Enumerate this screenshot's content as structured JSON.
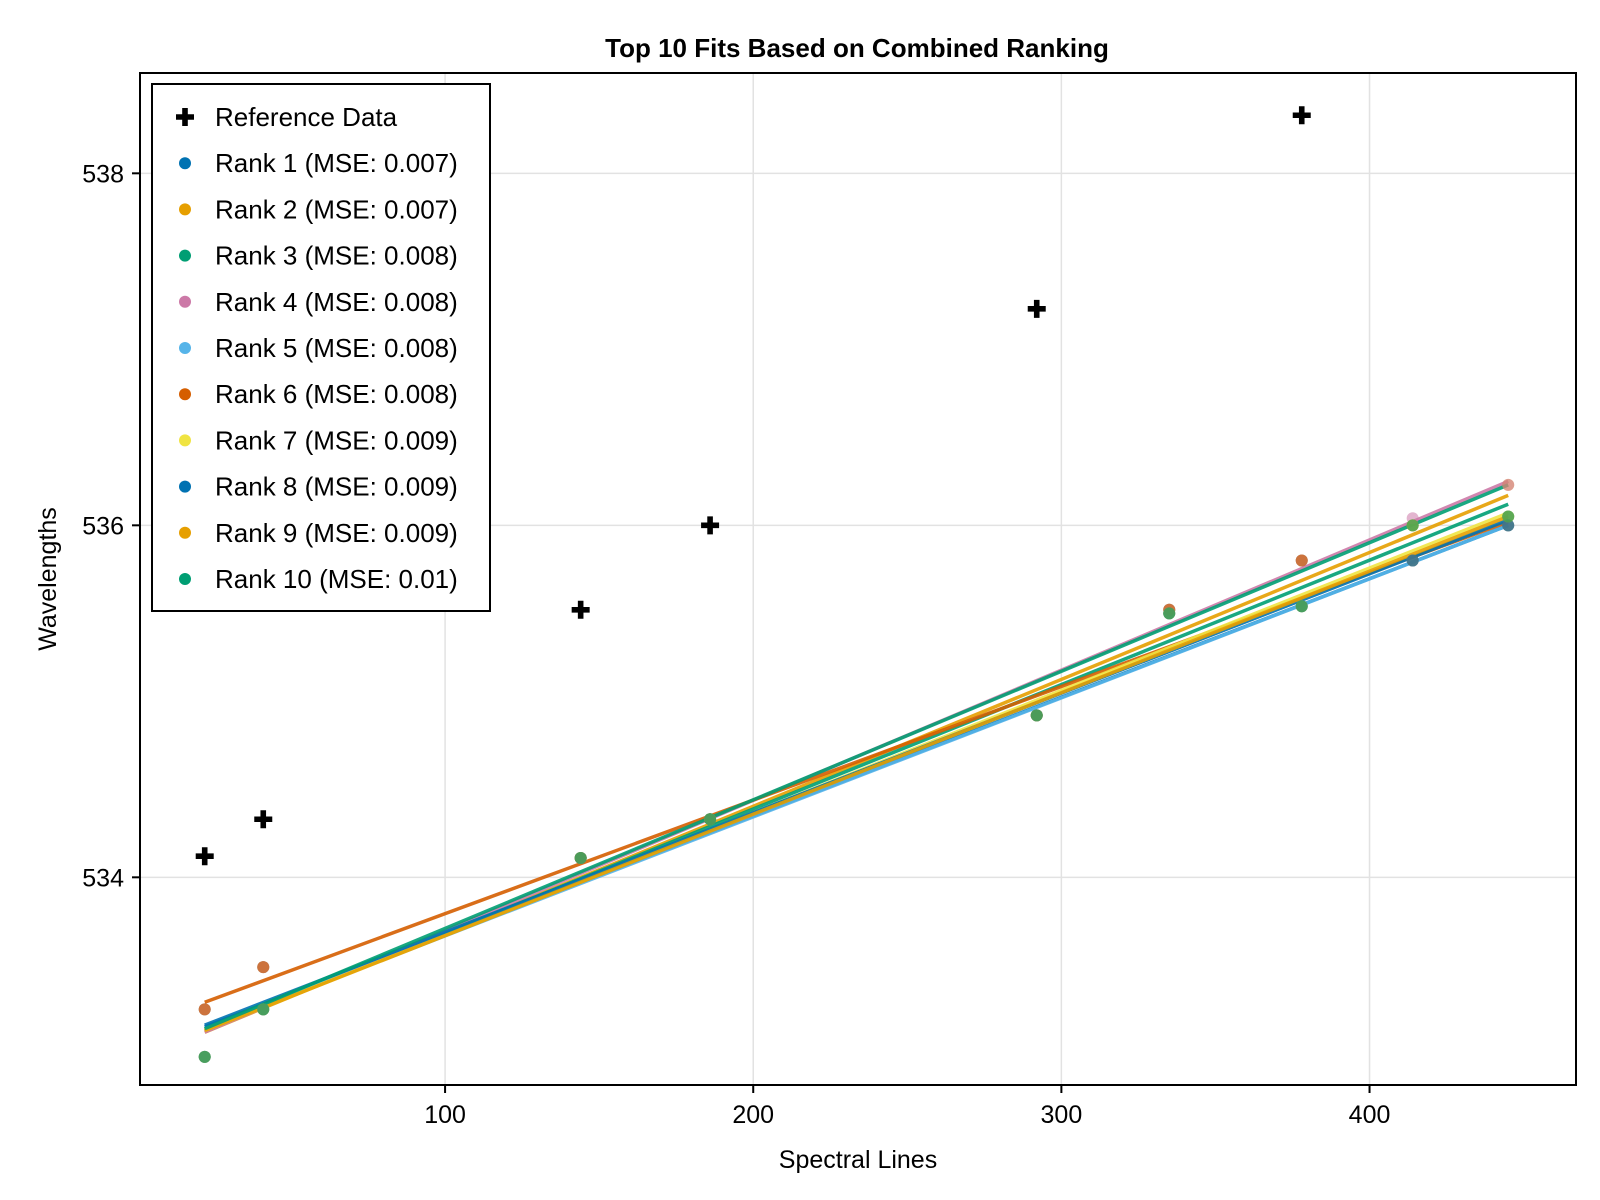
{
  "chart_data": {
    "type": "scatter",
    "title": "Top 10 Fits Based on Combined Ranking",
    "xlabel": "Spectral Lines",
    "ylabel": "Wavelengths",
    "xlim": [
      1,
      467
    ],
    "ylim": [
      532.82,
      538.57
    ],
    "xticks": [
      100,
      200,
      300,
      400
    ],
    "yticks": [
      534,
      536,
      538
    ],
    "grid": true,
    "legend_position": "top-left",
    "reference": {
      "name": "Reference Data",
      "color": "#000000",
      "marker": "cross",
      "x": [
        22,
        41,
        144,
        186,
        292,
        378
      ],
      "y": [
        534.12,
        534.33,
        535.52,
        536.0,
        537.23,
        538.33
      ]
    },
    "series": [
      {
        "name": "Rank 1 (MSE: 0.007)",
        "color": "#0072b2",
        "x": [
          22,
          41,
          144,
          186,
          292,
          335,
          378,
          414,
          445
        ],
        "y": [
          533.25,
          533.49,
          534.11,
          534.33,
          534.92,
          535.52,
          535.8,
          535.8,
          536.0
        ],
        "line": [
          [
            22,
            533.15
          ],
          [
            445,
            536.0
          ]
        ]
      },
      {
        "name": "Rank 2 (MSE: 0.007)",
        "color": "#e69f00",
        "x": [
          22,
          41,
          144,
          186,
          292,
          335,
          378,
          414,
          445
        ],
        "y": [
          533.25,
          533.49,
          534.11,
          534.33,
          534.92,
          535.52,
          535.8,
          536.0,
          536.23
        ],
        "line": [
          [
            22,
            533.12
          ],
          [
            445,
            536.17
          ]
        ]
      },
      {
        "name": "Rank 3 (MSE: 0.008)",
        "color": "#009e73",
        "x": [
          22,
          41,
          144,
          186,
          292,
          335,
          378,
          414,
          445
        ],
        "y": [
          532.98,
          533.25,
          534.11,
          534.33,
          534.92,
          535.5,
          535.54,
          536.0,
          536.05
        ],
        "line": [
          [
            22,
            533.13
          ],
          [
            445,
            536.12
          ]
        ]
      },
      {
        "name": "Rank 4 (MSE: 0.008)",
        "color": "#cc79a7",
        "x": [
          22,
          41,
          144,
          186,
          292,
          335,
          378,
          414,
          445
        ],
        "y": [
          533.25,
          533.49,
          534.11,
          534.33,
          534.92,
          535.52,
          535.8,
          536.04,
          536.23
        ],
        "line": [
          [
            22,
            533.12
          ],
          [
            445,
            536.25
          ]
        ]
      },
      {
        "name": "Rank 5 (MSE: 0.008)",
        "color": "#56b4e9",
        "x": [
          22,
          41,
          144,
          186,
          292,
          335,
          378,
          414,
          445
        ],
        "y": [
          532.98,
          533.25,
          534.11,
          534.33,
          534.92,
          535.5,
          535.54,
          535.8,
          536.0
        ],
        "line": [
          [
            22,
            533.14
          ],
          [
            445,
            536.0
          ]
        ]
      },
      {
        "name": "Rank 6 (MSE: 0.008)",
        "color": "#d55e00",
        "x": [
          22,
          41,
          144,
          186,
          292,
          335,
          378,
          414,
          445
        ],
        "y": [
          533.25,
          533.49,
          534.11,
          534.33,
          534.92,
          535.52,
          535.8,
          535.8,
          536.0
        ],
        "line": [
          [
            22,
            533.29
          ],
          [
            445,
            536.02
          ]
        ]
      },
      {
        "name": "Rank 7 (MSE: 0.009)",
        "color": "#f0e442",
        "x": [
          22,
          41,
          144,
          186,
          292,
          335,
          378,
          414,
          445
        ],
        "y": [
          532.98,
          533.25,
          534.11,
          534.33,
          534.92,
          535.5,
          535.54,
          536.0,
          536.05
        ],
        "line": [
          [
            22,
            533.13
          ],
          [
            445,
            536.07
          ]
        ]
      },
      {
        "name": "Rank 8 (MSE: 0.009)",
        "color": "#0072b2",
        "x": [
          22,
          41,
          144,
          186,
          292,
          335,
          378,
          414,
          445
        ],
        "y": [
          532.98,
          533.25,
          534.11,
          534.33,
          534.92,
          535.5,
          535.54,
          535.8,
          536.0
        ],
        "line": [
          [
            22,
            533.16
          ],
          [
            445,
            536.03
          ]
        ]
      },
      {
        "name": "Rank 9 (MSE: 0.009)",
        "color": "#e69f00",
        "x": [
          22,
          41,
          144,
          186,
          292,
          335,
          378,
          414,
          445
        ],
        "y": [
          532.98,
          533.25,
          534.11,
          534.33,
          534.92,
          535.5,
          535.54,
          536.0,
          536.05
        ],
        "line": [
          [
            22,
            533.13
          ],
          [
            445,
            536.05
          ]
        ]
      },
      {
        "name": "Rank 10 (MSE: 0.01)",
        "color": "#009e73",
        "x": [
          22,
          41,
          144,
          186,
          292,
          335,
          378,
          414,
          445
        ],
        "y": [
          532.98,
          533.25,
          534.11,
          534.33,
          534.92,
          535.5,
          535.54,
          536.0,
          536.05
        ],
        "line": [
          [
            22,
            533.14
          ],
          [
            445,
            536.23
          ]
        ]
      }
    ]
  }
}
